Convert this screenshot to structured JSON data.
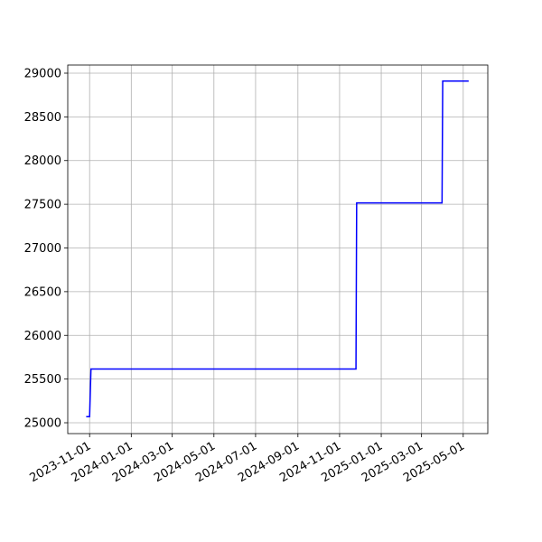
{
  "chart_data": {
    "type": "line",
    "x": [
      "2023-10-27",
      "2023-11-01",
      "2023-11-03",
      "2024-11-25",
      "2024-11-26",
      "2025-03-31",
      "2025-04-01",
      "2025-05-09"
    ],
    "values": [
      25070,
      25070,
      25615,
      25615,
      27515,
      27515,
      28910,
      28910
    ],
    "color": "#0000ff",
    "xlim": [
      "2023-09-30",
      "2025-06-06"
    ],
    "xticks": [
      "2023-11-01",
      "2024-01-01",
      "2024-03-01",
      "2024-05-01",
      "2024-07-01",
      "2024-09-01",
      "2024-11-01",
      "2025-01-01",
      "2025-03-01",
      "2025-05-01"
    ],
    "ylim": [
      24876,
      29093
    ],
    "yticks": [
      25000,
      25500,
      26000,
      26500,
      27000,
      27500,
      28000,
      28500,
      29000
    ],
    "grid": true
  }
}
